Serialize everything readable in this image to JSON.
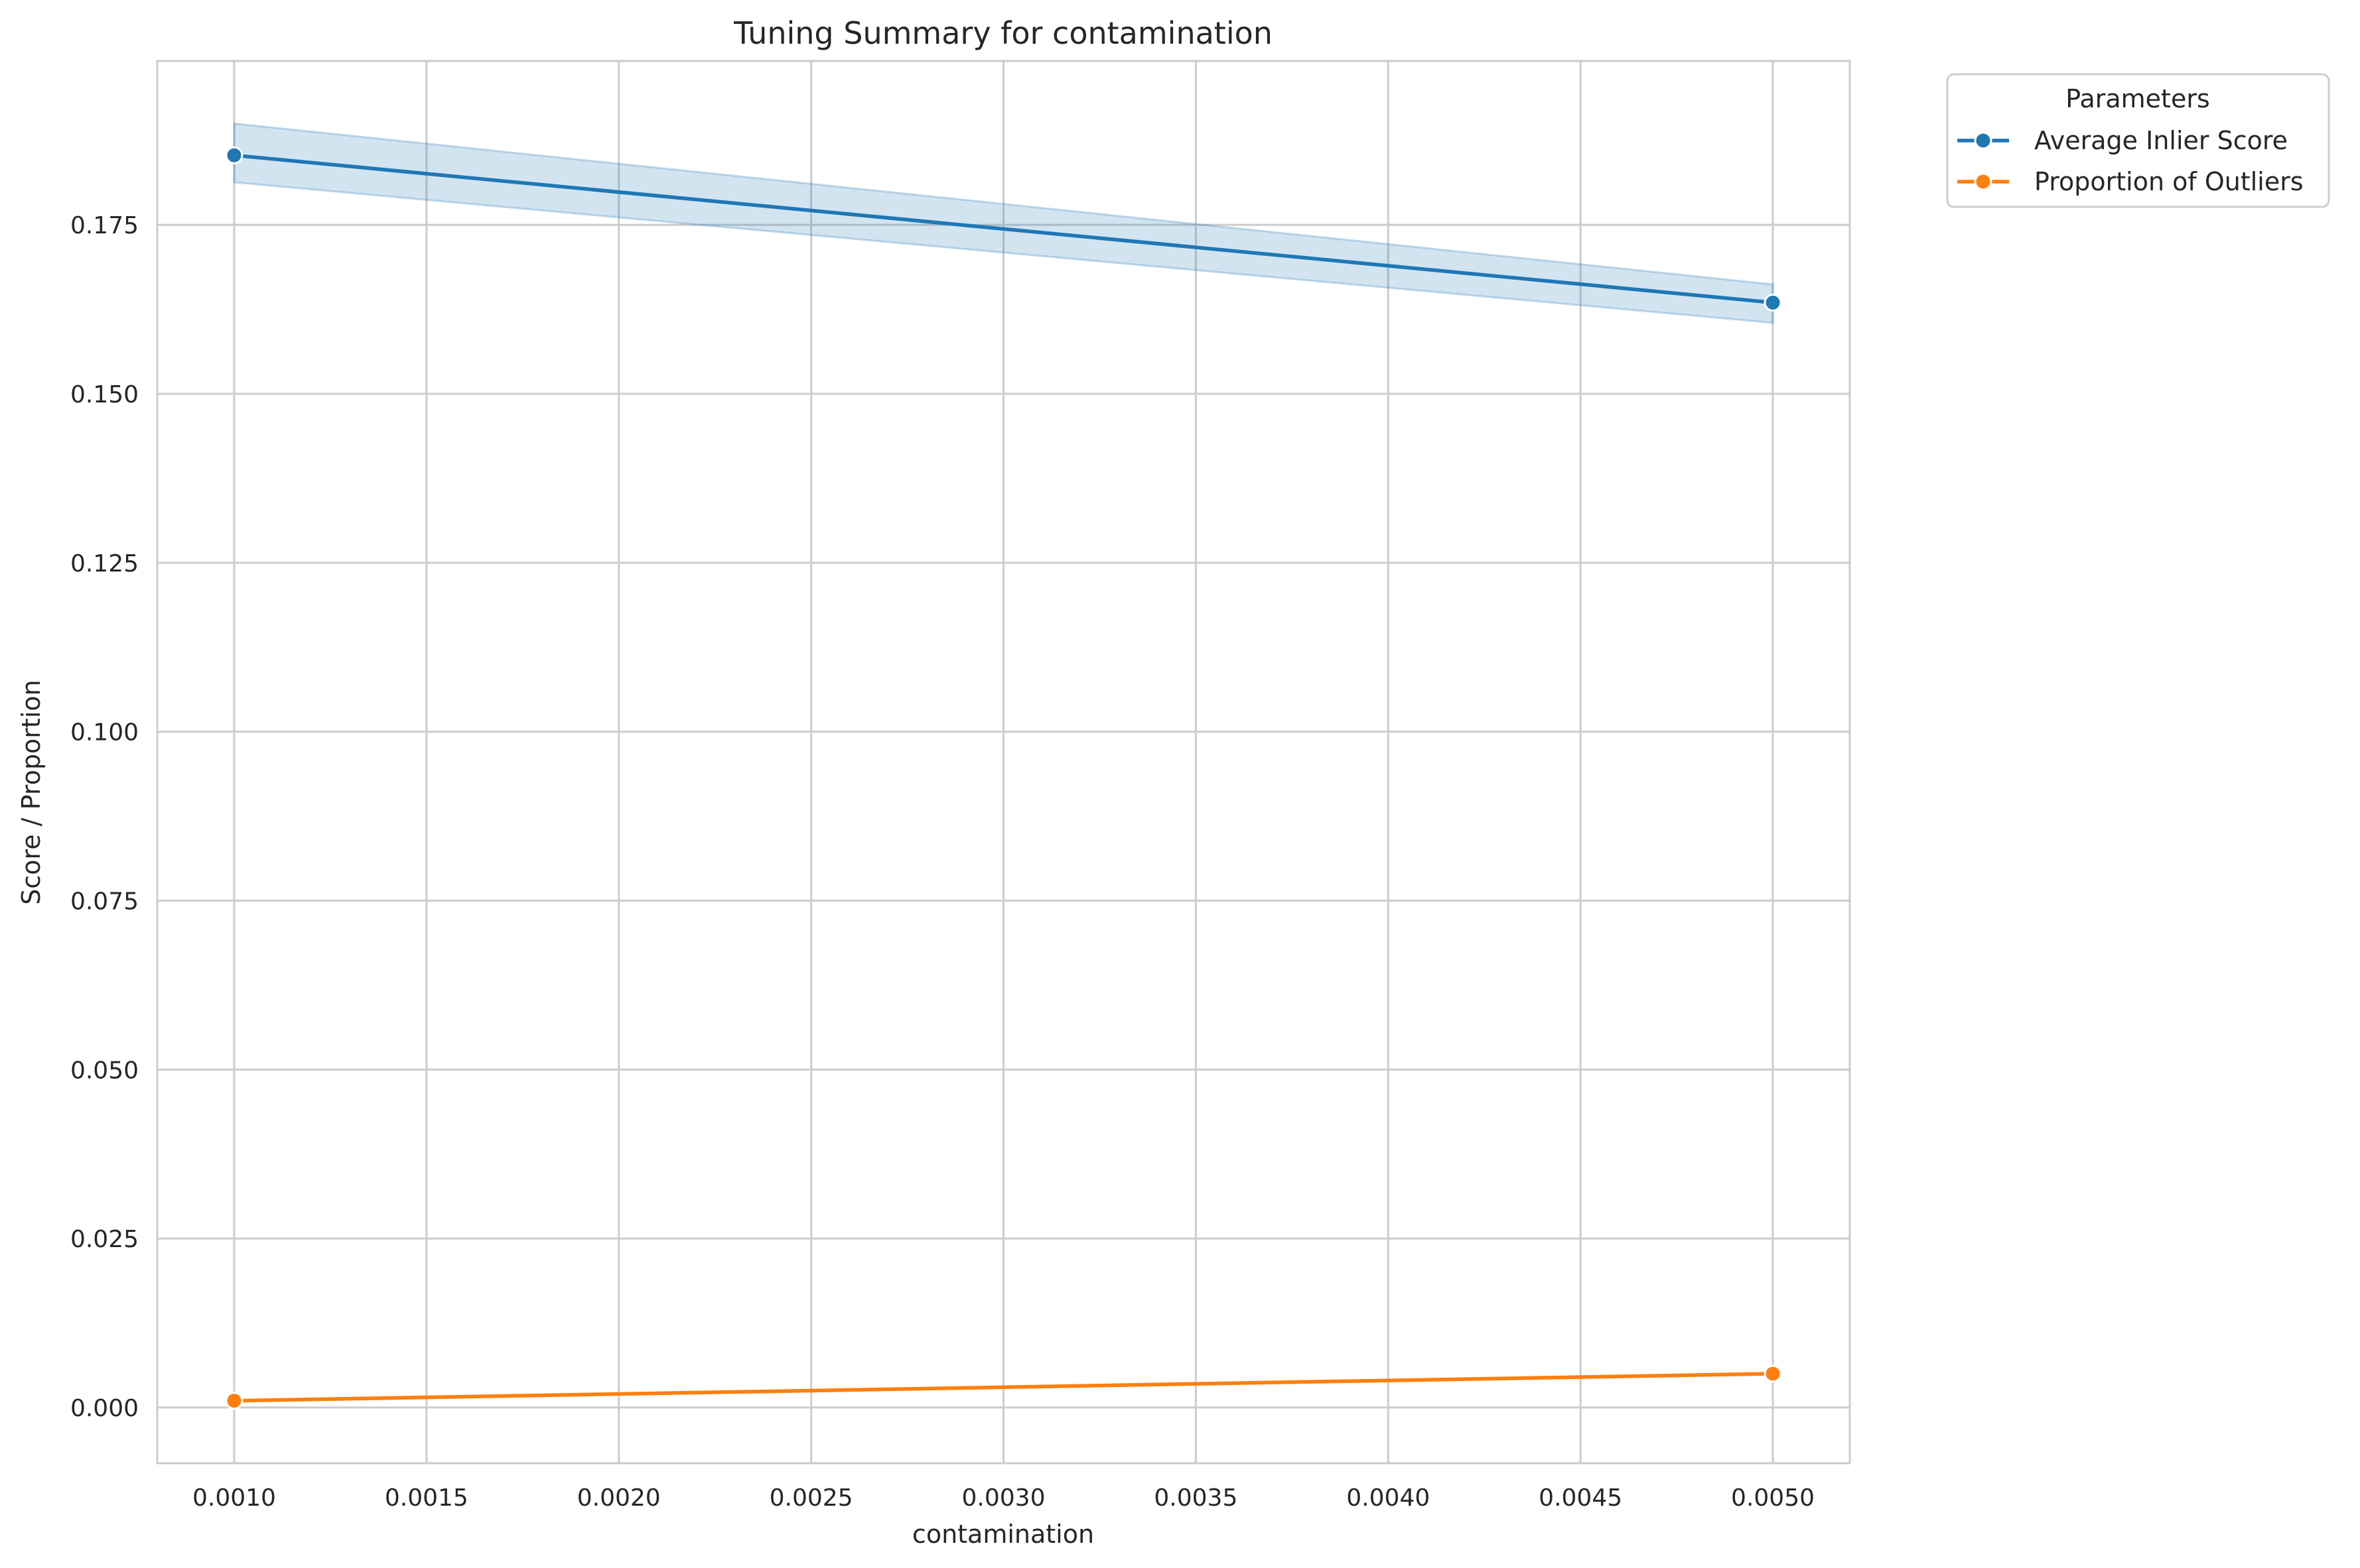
{
  "chart_data": {
    "type": "line",
    "title": "Tuning Summary for contamination",
    "xlabel": "contamination",
    "ylabel": "Score / Proportion",
    "xlim": [
      0.0008,
      0.0052
    ],
    "ylim": [
      -0.00825,
      0.19925
    ],
    "x_ticks": [
      0.001,
      0.0015,
      0.002,
      0.0025,
      0.003,
      0.0035,
      0.004,
      0.0045,
      0.005
    ],
    "x_tick_labels": [
      "0.0010",
      "0.0015",
      "0.0020",
      "0.0025",
      "0.0030",
      "0.0035",
      "0.0040",
      "0.0045",
      "0.0050"
    ],
    "y_ticks": [
      0.0,
      0.025,
      0.05,
      0.075,
      0.1,
      0.125,
      0.15,
      0.175
    ],
    "y_tick_labels": [
      "0.000",
      "0.025",
      "0.050",
      "0.075",
      "0.100",
      "0.125",
      "0.150",
      "0.175"
    ],
    "grid": true,
    "legend": {
      "title": "Parameters",
      "placement": "outside-top-right"
    },
    "series": [
      {
        "name": "Average Inlier Score",
        "color": "#1f77b4",
        "x": [
          0.001,
          0.005
        ],
        "y": [
          0.1853,
          0.1635
        ],
        "band_low": [
          0.1813,
          0.1605
        ],
        "band_high": [
          0.19,
          0.1662
        ]
      },
      {
        "name": "Proportion of Outliers",
        "color": "#ff7f0e",
        "x": [
          0.001,
          0.005
        ],
        "y": [
          0.001,
          0.005
        ]
      }
    ]
  }
}
